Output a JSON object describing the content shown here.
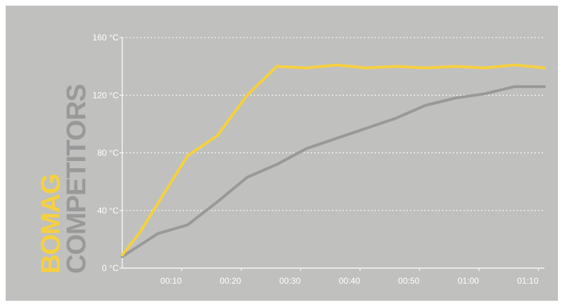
{
  "colors": {
    "background": "#c0c0bf",
    "axis": "#ffffff",
    "grid": "#ffffff"
  },
  "chart_data": {
    "type": "line",
    "x_ticks": [
      "00:10",
      "00:20",
      "00:30",
      "00:40",
      "00:50",
      "01:00",
      "01:10"
    ],
    "y_ticks": [
      "0 °C",
      "40 °C",
      "80 °C",
      "120 °C",
      "160 °C"
    ],
    "xlim": [
      0,
      71
    ],
    "ylim": [
      0,
      160
    ],
    "grid": "horizontal dotted",
    "legend_position": "left, vertical",
    "series": [
      {
        "name": "BOMAG",
        "color": "#f5d040",
        "points": [
          [
            0,
            9
          ],
          [
            3,
            25
          ],
          [
            6,
            45
          ],
          [
            11,
            78
          ],
          [
            16,
            92
          ],
          [
            21,
            120
          ],
          [
            26,
            140
          ],
          [
            31,
            139
          ],
          [
            36,
            141
          ],
          [
            41,
            139
          ],
          [
            46,
            140
          ],
          [
            51,
            139
          ],
          [
            56,
            140
          ],
          [
            61,
            139
          ],
          [
            66,
            141
          ],
          [
            71,
            139
          ]
        ]
      },
      {
        "name": "COMPETITORS",
        "color": "#999999",
        "points": [
          [
            0,
            8
          ],
          [
            3,
            16
          ],
          [
            6,
            24
          ],
          [
            11,
            30
          ],
          [
            16,
            46
          ],
          [
            21,
            63
          ],
          [
            26,
            72
          ],
          [
            31,
            83
          ],
          [
            36,
            90
          ],
          [
            41,
            97
          ],
          [
            46,
            104
          ],
          [
            51,
            113
          ],
          [
            56,
            118
          ],
          [
            61,
            121
          ],
          [
            66,
            126
          ],
          [
            71,
            126
          ]
        ]
      }
    ]
  }
}
